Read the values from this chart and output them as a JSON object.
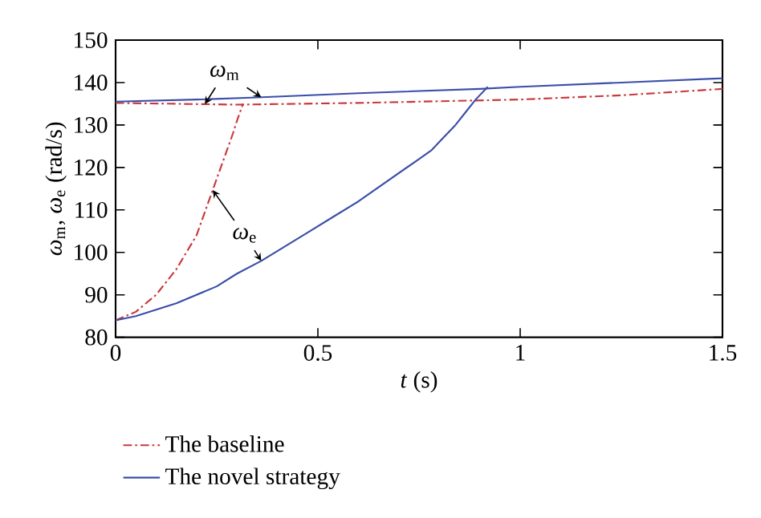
{
  "chart_data": {
    "type": "line",
    "xlabel": "*t* (s)",
    "ylabel": "*ω*$_{m}$, *ω*$_{e}$ (rad/s)",
    "xlim": [
      0,
      1.5
    ],
    "ylim": [
      80,
      150
    ],
    "xticks": [
      0,
      0.5,
      1,
      1.5
    ],
    "yticks": [
      80,
      90,
      100,
      110,
      120,
      130,
      140,
      150
    ],
    "grid": false,
    "legend": "bottom",
    "series": [
      {
        "name": "The baseline",
        "color": "#c8383c",
        "line_style": "dashdot",
        "x": [
          0,
          0.15,
          0.3,
          0.45,
          0.6,
          0.8,
          1.0,
          1.25,
          1.5
        ],
        "values": [
          135.2,
          135,
          134.8,
          135,
          135.2,
          135.6,
          136,
          137,
          138.5
        ]
      },
      {
        "name": "The novel strategy",
        "color": "#3a4ea8",
        "line_style": "solid",
        "x": [
          0,
          0.2,
          0.35,
          0.6,
          0.9,
          1.0,
          1.25,
          1.5
        ],
        "values": [
          135.5,
          136,
          136.5,
          137.5,
          138.5,
          139,
          140,
          141
        ]
      },
      {
        "color": "#c8383c",
        "line_style": "dashdot",
        "x": [
          0,
          0.025,
          0.05,
          0.1,
          0.125,
          0.15,
          0.175,
          0.2,
          0.215,
          0.23,
          0.245,
          0.26,
          0.275,
          0.29,
          0.3,
          0.315
        ],
        "values": [
          84,
          85,
          86,
          90,
          93,
          96,
          100,
          104,
          108,
          112,
          116,
          120,
          124,
          128,
          131,
          135
        ]
      },
      {
        "color": "#3a4ea8",
        "line_style": "solid",
        "x": [
          0,
          0.05,
          0.1,
          0.15,
          0.2,
          0.25,
          0.3,
          0.36,
          0.42,
          0.48,
          0.54,
          0.6,
          0.66,
          0.72,
          0.75,
          0.78,
          0.81,
          0.84,
          0.865,
          0.89,
          0.92
        ],
        "values": [
          84,
          85,
          86.5,
          88,
          90,
          92,
          95,
          98,
          101.5,
          105,
          108.5,
          112,
          116,
          120,
          122,
          124,
          127,
          130,
          133,
          136,
          139
        ]
      }
    ],
    "annotations": [
      "*ω*$_{m}$",
      "*ω*$_{e}$"
    ]
  }
}
